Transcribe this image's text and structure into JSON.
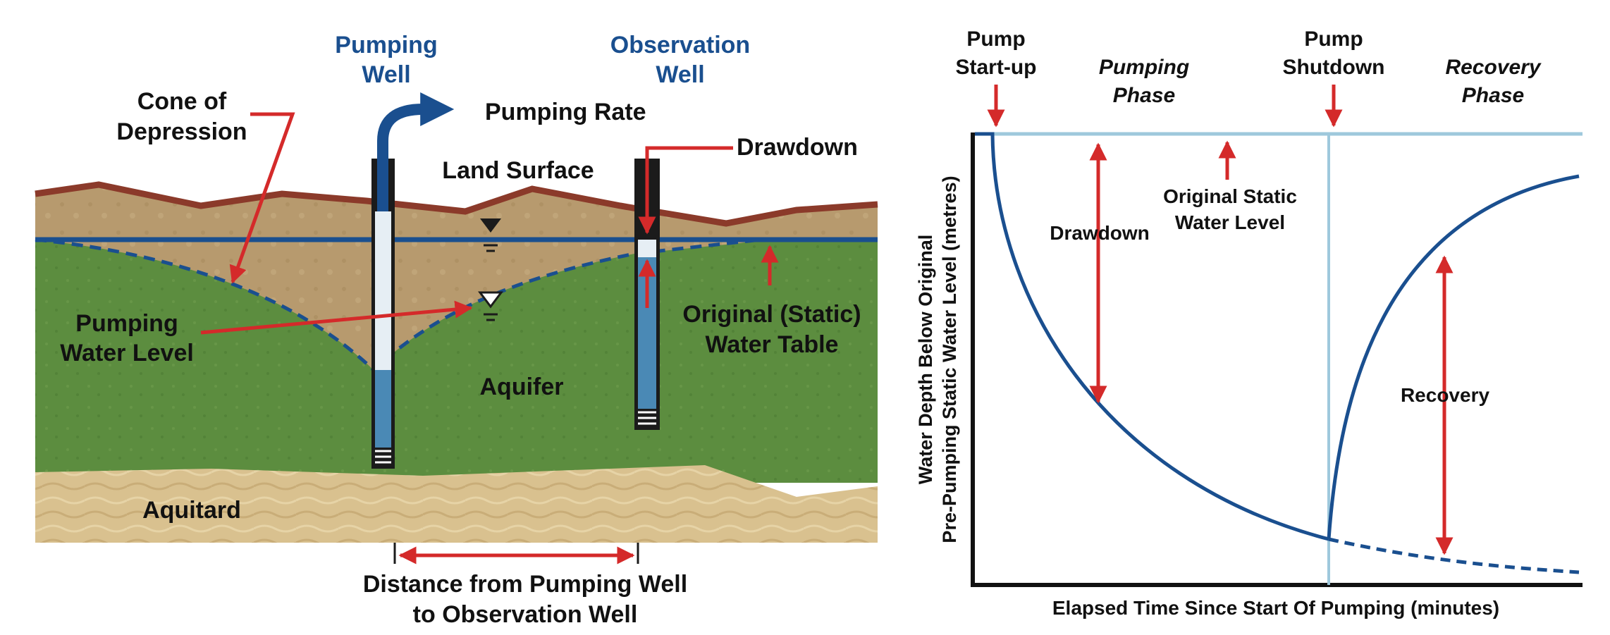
{
  "colors": {
    "soil_top": "#b79a6e",
    "aquifer_green": "#5c8d3f",
    "aquitard": "#d9c18f",
    "surface_line": "#8b3a2a",
    "water_table": "#1a4f8f",
    "accent_red": "#d42a2a",
    "well_water": "#4a89b5",
    "graph_curve": "#1a4f8f",
    "static_line": "#9ec8dc"
  },
  "diagram": {
    "pumping_well": [
      "Pumping",
      "Well"
    ],
    "observation_well": [
      "Observation",
      "Well"
    ],
    "pumping_rate": "Pumping Rate",
    "cone_of_depression": [
      "Cone of",
      "Depression"
    ],
    "land_surface": "Land Surface",
    "drawdown": "Drawdown",
    "pumping_water_level": [
      "Pumping",
      "Water Level"
    ],
    "original_water_table": [
      "Original (Static)",
      "Water Table"
    ],
    "aquifer": "Aquifer",
    "aquitard": "Aquitard",
    "distance": [
      "Distance from Pumping Well",
      "to Observation Well"
    ]
  },
  "graph": {
    "pump_startup": [
      "Pump",
      "Start-up"
    ],
    "pumping_phase": [
      "Pumping",
      "Phase"
    ],
    "pump_shutdown": [
      "Pump",
      "Shutdown"
    ],
    "recovery_phase": [
      "Recovery",
      "Phase"
    ],
    "drawdown": "Drawdown",
    "original_static": [
      "Original Static",
      "Water Level"
    ],
    "recovery": "Recovery",
    "ylabel": [
      "Water Depth Below Original",
      "Pre-Pumping Static Water Level (metres)"
    ],
    "xlabel": "Elapsed Time Since Start Of Pumping (minutes)"
  }
}
